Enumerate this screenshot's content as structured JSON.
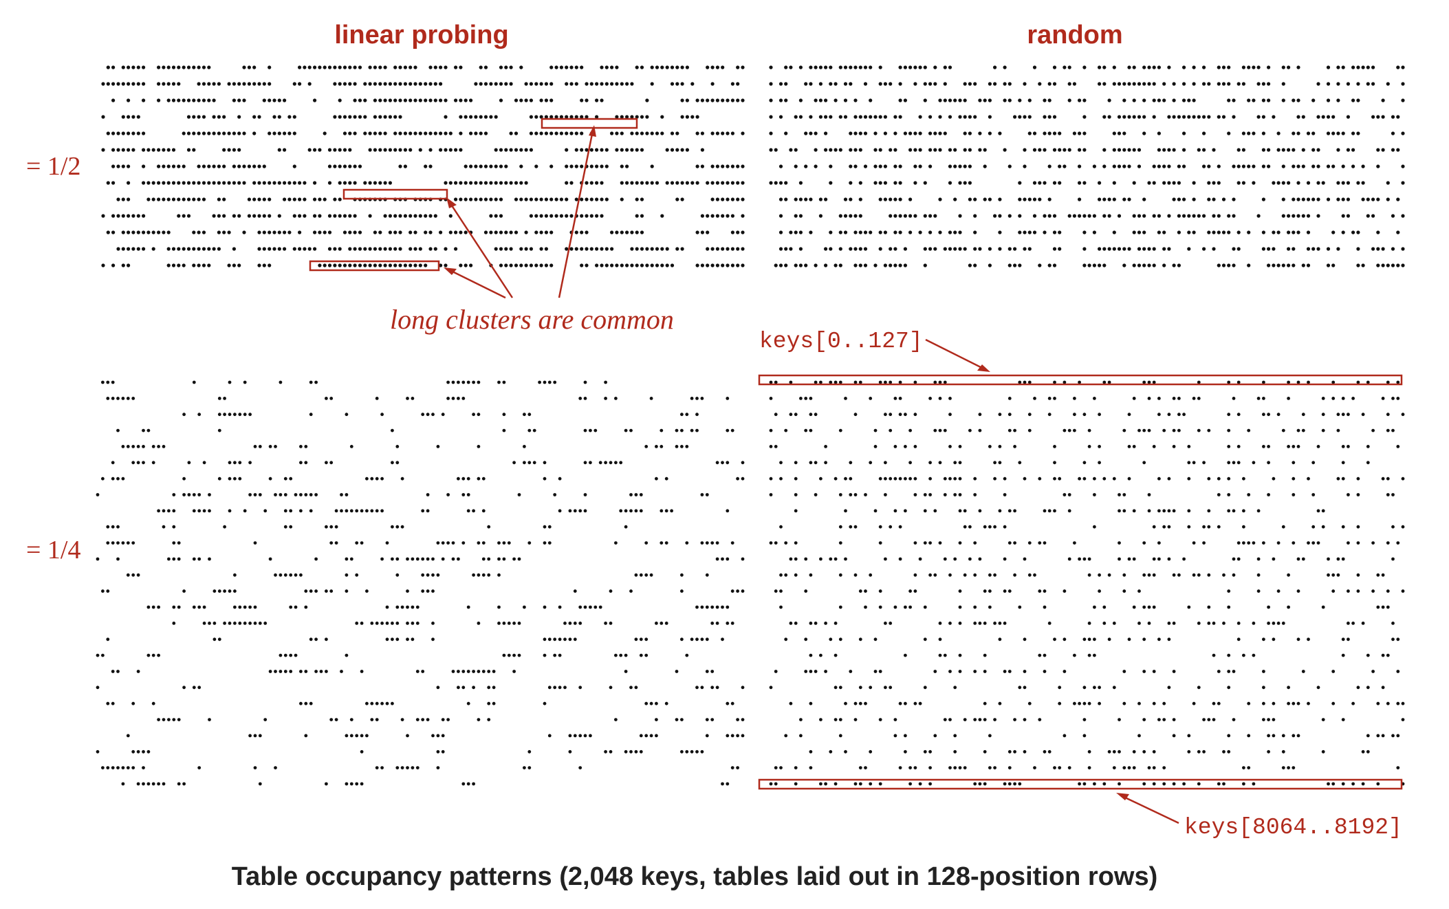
{
  "headers": {
    "left": "linear probing",
    "right": "random"
  },
  "row_labels": {
    "top": "= 1/2",
    "bottom": "= 1/4"
  },
  "annotations": {
    "clusters": "long clusters are common",
    "first_row": "keys[0..127]",
    "last_row": "keys[8064..8192]"
  },
  "caption": "Table occupancy patterns (2,048 keys, tables laid out in 128-position rows)",
  "panels": [
    {
      "id": "linear-half",
      "method": "linear probing",
      "load": "1/2",
      "columns": 128,
      "rows": 13,
      "clustered": true
    },
    {
      "id": "random-half",
      "method": "random",
      "load": "1/2",
      "columns": 128,
      "rows": 13,
      "clustered": false
    },
    {
      "id": "linear-quarter",
      "method": "linear probing",
      "load": "1/4",
      "columns": 128,
      "rows": 26,
      "clustered": true
    },
    {
      "id": "random-quarter",
      "method": "random",
      "load": "1/4",
      "columns": 128,
      "rows": 26,
      "clustered": false
    }
  ],
  "colors": {
    "accent": "#b02a1c",
    "dot": "#111111",
    "caption": "#222222"
  }
}
